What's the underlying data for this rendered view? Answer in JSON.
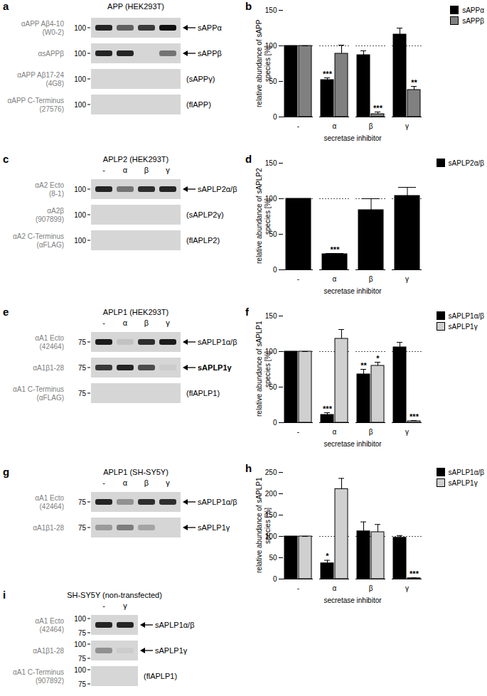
{
  "chart_data": [
    {
      "panel": "b",
      "type": "bar",
      "categories": [
        "-",
        "α",
        "β",
        "γ"
      ],
      "x_label": "secretase inhibitor",
      "y_label": "relative abundance of sAPP species [%]",
      "ylim": [
        0,
        150
      ],
      "yticks": [
        0,
        50,
        100,
        150
      ],
      "reference": 100,
      "legend": "top-right",
      "series": [
        {
          "name": "sAPPα",
          "color": "#000000",
          "values": [
            100,
            52,
            87,
            116
          ],
          "errors": [
            0,
            3,
            6,
            9
          ],
          "significance": [
            null,
            "***",
            null,
            null
          ]
        },
        {
          "name": "sAPPβ",
          "color": "#808080",
          "values": [
            100,
            89,
            4,
            38
          ],
          "errors": [
            0,
            12,
            3,
            5
          ],
          "significance": [
            null,
            null,
            "***",
            "**"
          ]
        }
      ]
    },
    {
      "panel": "d",
      "type": "bar",
      "categories": [
        "-",
        "α",
        "β",
        "γ"
      ],
      "x_label": "secretase inhibitor",
      "y_label": "relative abundance of sAPLP2 species [%]",
      "ylim": [
        0,
        150
      ],
      "yticks": [
        0,
        50,
        100,
        150
      ],
      "reference": 100,
      "legend": "top-right",
      "series": [
        {
          "name": "sAPLP2α/β",
          "color": "#000000",
          "values": [
            100,
            22,
            84,
            104
          ],
          "errors": [
            0,
            1,
            16,
            12
          ],
          "significance": [
            null,
            "***",
            null,
            null
          ]
        }
      ]
    },
    {
      "panel": "f",
      "type": "bar",
      "categories": [
        "-",
        "α",
        "β",
        "γ"
      ],
      "x_label": "secretase inhibitor",
      "y_label": "relative abundance of sAPLP1 species [%]",
      "ylim": [
        0,
        150
      ],
      "yticks": [
        0,
        50,
        100,
        150
      ],
      "reference": 100,
      "legend": "top-right",
      "series": [
        {
          "name": "sAPLP1α/β",
          "color": "#000000",
          "values": [
            100,
            11,
            68,
            106
          ],
          "errors": [
            0,
            3,
            7,
            7
          ],
          "significance": [
            null,
            "***",
            "**",
            null
          ]
        },
        {
          "name": "sAPLP1γ",
          "color": "#d0d0d0",
          "values": [
            100,
            118,
            80,
            2
          ],
          "errors": [
            0,
            13,
            5,
            1
          ],
          "significance": [
            null,
            null,
            "*",
            "***"
          ]
        }
      ]
    },
    {
      "panel": "h",
      "type": "bar",
      "categories": [
        "-",
        "α",
        "β",
        "γ"
      ],
      "x_label": "secretase inhibitor",
      "y_label": "relative abundance of sAPLP1 species [%]",
      "ylim": [
        0,
        250
      ],
      "yticks": [
        0,
        50,
        100,
        150,
        200,
        250
      ],
      "reference": 100,
      "legend": "top-right",
      "series": [
        {
          "name": "sAPLP1α/β",
          "color": "#000000",
          "values": [
            100,
            37,
            112,
            97
          ],
          "errors": [
            0,
            7,
            22,
            5
          ],
          "significance": [
            null,
            "*",
            null,
            null
          ]
        },
        {
          "name": "sAPLP1γ",
          "color": "#d0d0d0",
          "values": [
            100,
            211,
            110,
            2
          ],
          "errors": [
            0,
            25,
            18,
            1
          ],
          "significance": [
            null,
            null,
            null,
            "***"
          ]
        }
      ]
    }
  ],
  "blots": [
    {
      "panel": "a",
      "title": "APP (HEK293T)",
      "rows": [
        {
          "antibody": [
            "αAPP Aβ4-10",
            "(W0-2)"
          ],
          "markers": [
            100
          ],
          "label": "sAPPα",
          "arrow": true,
          "bands": [
            0.9,
            0.6,
            0.8,
            1.0
          ]
        },
        {
          "antibody": [
            "αsAPPβ"
          ],
          "markers": [
            100
          ],
          "label": "sAPPβ",
          "arrow": true,
          "bands": [
            0.9,
            0.9,
            0,
            0.5
          ]
        },
        {
          "antibody": [
            "αAPP Aβ17-24",
            "(4G8)"
          ],
          "markers": [
            100
          ],
          "label": "(sAPPγ)",
          "arrow": false,
          "bands": [
            0,
            0,
            0,
            0
          ]
        },
        {
          "antibody": [
            "αAPP C-Terminus",
            "(27576)"
          ],
          "markers": [
            100
          ],
          "label": "(flAPP)",
          "arrow": false,
          "bands": [
            0,
            0,
            0,
            0
          ]
        }
      ]
    },
    {
      "panel": "c",
      "title": "APLP2 (HEK293T)",
      "lanes": [
        "-",
        "α",
        "β",
        "γ"
      ],
      "rows": [
        {
          "antibody": [
            "αA2 Ecto",
            "(8-1)"
          ],
          "markers": [
            100
          ],
          "label": "sAPLP2α/β",
          "arrow": true,
          "bands": [
            0.9,
            0.5,
            0.85,
            0.9
          ]
        },
        {
          "antibody": [
            "αA2β",
            "(907899)"
          ],
          "markers": [
            100
          ],
          "label": "(sAPLP2γ)",
          "arrow": false,
          "bands": [
            0,
            0,
            0,
            0
          ]
        },
        {
          "antibody": [
            "αA2 C-Terminus",
            "(αFLAG)"
          ],
          "markers": [
            100
          ],
          "label": "(flAPLP2)",
          "arrow": false,
          "bands": [
            0,
            0,
            0,
            0
          ]
        }
      ]
    },
    {
      "panel": "e",
      "title": "APLP1 (HEK293T)",
      "lanes": [
        "-",
        "α",
        "β",
        "γ"
      ],
      "rows": [
        {
          "antibody": [
            "αA1 Ecto",
            "(42464)"
          ],
          "markers": [
            75
          ],
          "label": "sAPLP1α/β",
          "arrow": true,
          "bands": [
            0.95,
            0.1,
            0.85,
            0.95
          ]
        },
        {
          "antibody": [
            "αA1β1-28"
          ],
          "markers": [
            75
          ],
          "label": "sAPLP1γ",
          "arrow": true,
          "bold": true,
          "bands": [
            0.8,
            0.9,
            0.7,
            0.05
          ]
        },
        {
          "antibody": [
            "αA1 C-Terminus",
            "(αFLAG)"
          ],
          "markers": [
            75
          ],
          "label": "(flAPLP1)",
          "arrow": false,
          "bands": [
            0,
            0,
            0,
            0
          ]
        }
      ]
    },
    {
      "panel": "g",
      "title": "APLP1 (SH-SY5Y)",
      "lanes": [
        "-",
        "α",
        "β",
        "γ"
      ],
      "rows": [
        {
          "antibody": [
            "αA1 Ecto",
            "(42464)"
          ],
          "markers": [
            75
          ],
          "label": "sAPLP1α/β",
          "arrow": true,
          "bands": [
            0.9,
            0.35,
            0.85,
            0.85
          ]
        },
        {
          "antibody": [
            "αA1β1-28"
          ],
          "markers": [
            75
          ],
          "label": "sAPLP1γ",
          "arrow": true,
          "bands": [
            0.3,
            0.45,
            0.25,
            0
          ]
        }
      ]
    },
    {
      "panel": "i",
      "title": "SH-SY5Y (non-transfected)",
      "lanes": [
        "-",
        "γ"
      ],
      "rows": [
        {
          "antibody": [
            "αA1 Ecto",
            "(42464)"
          ],
          "markers": [
            100,
            75
          ],
          "label": "sAPLP1α/β",
          "arrow": true,
          "bands": [
            0.9,
            0.9
          ]
        },
        {
          "antibody": [
            "αA1β1-28"
          ],
          "markers": [
            100,
            75
          ],
          "label": "sAPLP1γ",
          "arrow": true,
          "bands": [
            0.35,
            0.05
          ]
        },
        {
          "antibody": [
            "αA1 C-Terminus",
            "(907892)"
          ],
          "markers": [
            100,
            75
          ],
          "label": "(flAPLP1)",
          "arrow": false,
          "bands": [
            0,
            0
          ]
        }
      ]
    }
  ]
}
